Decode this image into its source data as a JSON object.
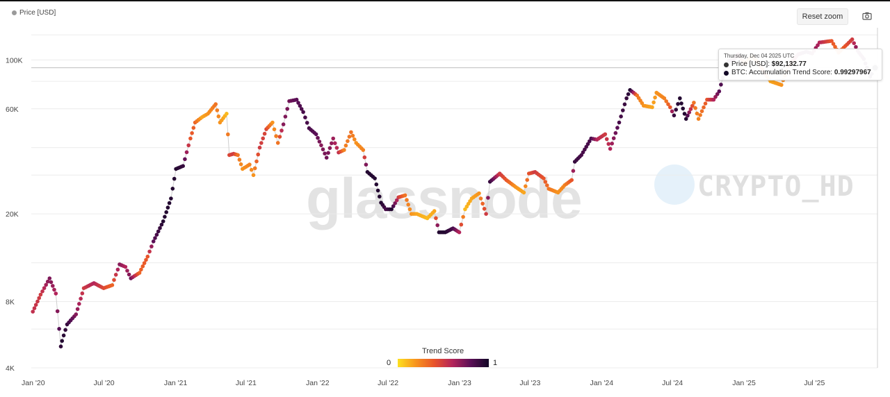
{
  "legend": {
    "series_label": "Price [USD]"
  },
  "toolbar": {
    "reset_zoom_label": "Reset zoom",
    "camera_icon": "camera-icon"
  },
  "tooltip": {
    "date": "Thursday, Dec 04 2025 UTC",
    "price_label": "Price [USD]:",
    "price_value": "$92,132.77",
    "score_label": "BTC: Accumulation Trend Score:",
    "score_value": "0.99297967"
  },
  "watermarks": {
    "glassnode": "glassnode",
    "channel": "CRYPTO_HD"
  },
  "trend_legend": {
    "title": "Trend Score",
    "min": "0",
    "max": "1"
  },
  "colors": {
    "low": "#fde020",
    "mid_low": "#f7931e",
    "mid": "#e8542a",
    "mid_high": "#b3245a",
    "high_mid": "#5a0f56",
    "high": "#120726",
    "gridline": "#ececec",
    "text": "#444444"
  },
  "chart_data": {
    "type": "scatter",
    "y_scale": "log",
    "ylim": [
      4000,
      140000
    ],
    "y_ticks": [
      {
        "value": 4000,
        "label": "4K"
      },
      {
        "value": 8000,
        "label": "8K"
      },
      {
        "value": 20000,
        "label": "20K"
      },
      {
        "value": 60000,
        "label": "60K"
      },
      {
        "value": 100000,
        "label": "100K"
      }
    ],
    "x_ticks": [
      "Jan '20",
      "Jul '20",
      "Jan '21",
      "Jul '21",
      "Jan '22",
      "Jul '22",
      "Jan '23",
      "Jul '23",
      "Jan '24",
      "Jul '24",
      "Jan '25",
      "Jul '25"
    ],
    "x_range": [
      "2019-12-27",
      "2025-12-10"
    ],
    "color_scale": {
      "name": "Trend Score",
      "min": 0,
      "max": 1
    },
    "series": [
      {
        "name": "Price [USD]",
        "points": [
          [
            "2019-12-31",
            7200,
            0.55
          ],
          [
            "2020-01-20",
            8600,
            0.5
          ],
          [
            "2020-02-12",
            10200,
            0.72
          ],
          [
            "2020-02-28",
            8700,
            0.6
          ],
          [
            "2020-03-12",
            5000,
            0.92
          ],
          [
            "2020-03-15",
            5300,
            0.95
          ],
          [
            "2020-03-28",
            6300,
            0.9
          ],
          [
            "2020-04-20",
            7000,
            0.7
          ],
          [
            "2020-05-10",
            9200,
            0.5
          ],
          [
            "2020-06-05",
            9700,
            0.6
          ],
          [
            "2020-06-30",
            9200,
            0.45
          ],
          [
            "2020-07-22",
            9500,
            0.35
          ],
          [
            "2020-08-10",
            11800,
            0.7
          ],
          [
            "2020-08-25",
            11500,
            0.6
          ],
          [
            "2020-09-08",
            10200,
            0.75
          ],
          [
            "2020-09-30",
            10800,
            0.35
          ],
          [
            "2020-10-21",
            12800,
            0.4
          ],
          [
            "2020-11-05",
            15000,
            0.8
          ],
          [
            "2020-11-30",
            18500,
            0.95
          ],
          [
            "2020-12-20",
            23500,
            0.95
          ],
          [
            "2021-01-02",
            32000,
            0.95
          ],
          [
            "2021-01-20",
            33000,
            0.9
          ],
          [
            "2021-02-08",
            44000,
            0.4
          ],
          [
            "2021-02-20",
            52000,
            0.35
          ],
          [
            "2021-03-10",
            55000,
            0.15
          ],
          [
            "2021-03-25",
            57000,
            0.2
          ],
          [
            "2021-04-14",
            63000,
            0.3
          ],
          [
            "2021-04-25",
            52000,
            0.2
          ],
          [
            "2021-05-12",
            57000,
            0.1
          ],
          [
            "2021-05-19",
            37000,
            0.45
          ],
          [
            "2021-05-30",
            37500,
            0.5
          ],
          [
            "2021-06-10",
            37000,
            0.3
          ],
          [
            "2021-06-22",
            32000,
            0.2
          ],
          [
            "2021-07-10",
            33500,
            0.25
          ],
          [
            "2021-07-20",
            30000,
            0.2
          ],
          [
            "2021-08-05",
            40000,
            0.5
          ],
          [
            "2021-08-22",
            48500,
            0.45
          ],
          [
            "2021-09-07",
            52000,
            0.2
          ],
          [
            "2021-09-21",
            42000,
            0.3
          ],
          [
            "2021-10-05",
            51000,
            0.7
          ],
          [
            "2021-10-20",
            65000,
            0.75
          ],
          [
            "2021-11-08",
            66000,
            0.8
          ],
          [
            "2021-11-25",
            58000,
            0.85
          ],
          [
            "2021-12-10",
            49000,
            0.85
          ],
          [
            "2021-12-28",
            46000,
            0.8
          ],
          [
            "2022-01-10",
            41000,
            0.7
          ],
          [
            "2022-01-24",
            36000,
            0.75
          ],
          [
            "2022-02-10",
            44000,
            0.65
          ],
          [
            "2022-02-24",
            38000,
            0.55
          ],
          [
            "2022-03-10",
            39000,
            0.25
          ],
          [
            "2022-03-28",
            47000,
            0.3
          ],
          [
            "2022-04-10",
            42000,
            0.2
          ],
          [
            "2022-04-28",
            39000,
            0.25
          ],
          [
            "2022-05-09",
            31000,
            0.95
          ],
          [
            "2022-05-28",
            29000,
            0.95
          ],
          [
            "2022-06-13",
            22500,
            0.95
          ],
          [
            "2022-06-25",
            21000,
            0.85
          ],
          [
            "2022-07-10",
            21000,
            0.95
          ],
          [
            "2022-07-28",
            23800,
            0.5
          ],
          [
            "2022-08-14",
            24300,
            0.3
          ],
          [
            "2022-08-30",
            20000,
            0.2
          ],
          [
            "2022-09-13",
            20000,
            0.15
          ],
          [
            "2022-10-10",
            19100,
            0.1
          ],
          [
            "2022-10-28",
            20600,
            0.15
          ],
          [
            "2022-11-09",
            16500,
            0.95
          ],
          [
            "2022-11-25",
            16500,
            0.95
          ],
          [
            "2022-12-15",
            17200,
            0.85
          ],
          [
            "2022-12-31",
            16500,
            0.6
          ],
          [
            "2023-01-15",
            21000,
            0.1
          ],
          [
            "2023-02-01",
            23500,
            0.15
          ],
          [
            "2023-02-20",
            24800,
            0.2
          ],
          [
            "2023-03-10",
            20000,
            0.5
          ],
          [
            "2023-03-20",
            28000,
            0.9
          ],
          [
            "2023-04-14",
            30500,
            0.5
          ],
          [
            "2023-05-01",
            28500,
            0.4
          ],
          [
            "2023-05-25",
            26500,
            0.2
          ],
          [
            "2023-06-15",
            25000,
            0.15
          ],
          [
            "2023-06-28",
            30500,
            0.4
          ],
          [
            "2023-07-14",
            31000,
            0.5
          ],
          [
            "2023-08-05",
            29000,
            0.4
          ],
          [
            "2023-08-18",
            26000,
            0.3
          ],
          [
            "2023-09-11",
            25000,
            0.2
          ],
          [
            "2023-09-28",
            27000,
            0.25
          ],
          [
            "2023-10-16",
            28500,
            0.4
          ],
          [
            "2023-10-24",
            34500,
            0.9
          ],
          [
            "2023-11-10",
            37000,
            0.85
          ],
          [
            "2023-12-05",
            44000,
            0.85
          ],
          [
            "2023-12-20",
            43500,
            0.6
          ],
          [
            "2024-01-10",
            46000,
            0.5
          ],
          [
            "2024-01-23",
            39500,
            0.6
          ],
          [
            "2024-02-15",
            52000,
            0.85
          ],
          [
            "2024-03-05",
            67000,
            0.9
          ],
          [
            "2024-03-14",
            73000,
            0.95
          ],
          [
            "2024-04-01",
            69000,
            0.3
          ],
          [
            "2024-04-18",
            62000,
            0.2
          ],
          [
            "2024-05-10",
            61000,
            0.15
          ],
          [
            "2024-05-21",
            71000,
            0.2
          ],
          [
            "2024-06-10",
            67000,
            0.25
          ],
          [
            "2024-06-25",
            61000,
            0.4
          ],
          [
            "2024-07-05",
            56000,
            0.9
          ],
          [
            "2024-07-20",
            67000,
            0.95
          ],
          [
            "2024-08-05",
            54000,
            0.95
          ],
          [
            "2024-08-25",
            64000,
            0.3
          ],
          [
            "2024-09-06",
            54000,
            0.25
          ],
          [
            "2024-09-28",
            66000,
            0.4
          ],
          [
            "2024-10-15",
            66000,
            0.6
          ],
          [
            "2024-10-29",
            72000,
            0.8
          ],
          [
            "2024-11-12",
            89000,
            0.9
          ],
          [
            "2024-11-22",
            99000,
            0.9
          ],
          [
            "2024-12-05",
            100000,
            0.75
          ],
          [
            "2024-12-17",
            106000,
            0.65
          ],
          [
            "2025-01-02",
            96000,
            0.25
          ],
          [
            "2025-01-22",
            104000,
            0.2
          ],
          [
            "2025-02-05",
            98000,
            0.3
          ],
          [
            "2025-02-25",
            86000,
            0.3
          ],
          [
            "2025-03-10",
            80000,
            0.15
          ],
          [
            "2025-04-07",
            77000,
            0.2
          ],
          [
            "2025-04-25",
            94000,
            0.3
          ],
          [
            "2025-05-20",
            106000,
            0.7
          ],
          [
            "2025-06-10",
            109000,
            0.85
          ],
          [
            "2025-06-25",
            107000,
            0.7
          ],
          [
            "2025-07-14",
            120000,
            0.6
          ],
          [
            "2025-08-14",
            122000,
            0.4
          ],
          [
            "2025-09-01",
            108000,
            0.3
          ],
          [
            "2025-10-06",
            124000,
            0.5
          ],
          [
            "2025-10-20",
            110000,
            0.75
          ],
          [
            "2025-11-05",
            101000,
            0.8
          ],
          [
            "2025-11-21",
            84000,
            0.95
          ],
          [
            "2025-12-04",
            92132.77,
            0.99297967
          ]
        ]
      }
    ]
  }
}
